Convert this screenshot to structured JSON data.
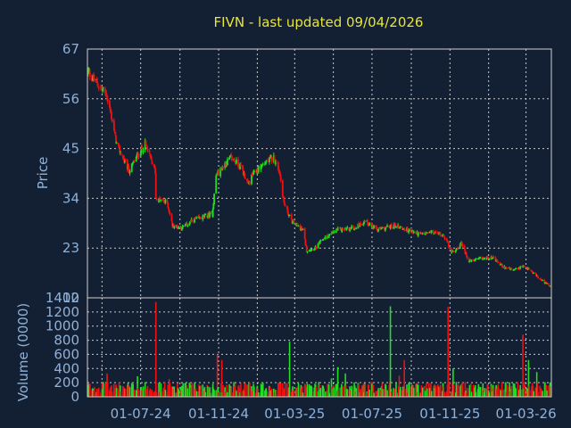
{
  "chart_data": {
    "type": "candlestick",
    "title": "FIVN - last updated 09/04/2026",
    "price_panel": {
      "ylabel": "Price",
      "ylim": [
        12,
        67
      ],
      "yticks": [
        67,
        56,
        45,
        34,
        23,
        12
      ]
    },
    "volume_panel": {
      "ylabel": "Volume (0000)",
      "ylim": [
        0,
        1400
      ],
      "yticks": [
        1400,
        1200,
        1000,
        800,
        600,
        400,
        200,
        0
      ]
    },
    "x_tick_labels": [
      "01-07-24",
      "01-11-24",
      "01-03-25",
      "01-07-25",
      "01-11-25",
      "01-03-26"
    ],
    "colors": {
      "up": "#22dd22",
      "down": "#ee1111",
      "grid": "#c8c8c8",
      "frame": "#cfcfcf",
      "background": "#132033",
      "text": "#8fb1d8",
      "title": "#e8e43a"
    },
    "price_anchors": [
      [
        "2024-04-09",
        62
      ],
      [
        "2024-04-25",
        59
      ],
      [
        "2024-05-08",
        57
      ],
      [
        "2024-05-16",
        52
      ],
      [
        "2024-05-24",
        46
      ],
      [
        "2024-06-06",
        42
      ],
      [
        "2024-06-13",
        40
      ],
      [
        "2024-06-24",
        43
      ],
      [
        "2024-07-08",
        46
      ],
      [
        "2024-07-24",
        40
      ],
      [
        "2024-07-25",
        34
      ],
      [
        "2024-08-12",
        33
      ],
      [
        "2024-08-20",
        28
      ],
      [
        "2024-09-05",
        27.5
      ],
      [
        "2024-09-20",
        29
      ],
      [
        "2024-10-10",
        30
      ],
      [
        "2024-10-22",
        30.5
      ],
      [
        "2024-10-28",
        39
      ],
      [
        "2024-11-08",
        41
      ],
      [
        "2024-11-20",
        43
      ],
      [
        "2024-12-06",
        41
      ],
      [
        "2024-12-18",
        37
      ],
      [
        "2024-12-24",
        39
      ],
      [
        "2025-01-06",
        41
      ],
      [
        "2025-01-14",
        42
      ],
      [
        "2025-01-27",
        43
      ],
      [
        "2025-02-05",
        40
      ],
      [
        "2025-02-12",
        33
      ],
      [
        "2025-02-24",
        29
      ],
      [
        "2025-03-14",
        27
      ],
      [
        "2025-03-20",
        22.5
      ],
      [
        "2025-04-03",
        23
      ],
      [
        "2025-04-15",
        25
      ],
      [
        "2025-05-08",
        27
      ],
      [
        "2025-06-04",
        27.5
      ],
      [
        "2025-06-20",
        29
      ],
      [
        "2025-07-09",
        27
      ],
      [
        "2025-08-07",
        28
      ],
      [
        "2025-08-25",
        27
      ],
      [
        "2025-09-16",
        26
      ],
      [
        "2025-10-02",
        26.5
      ],
      [
        "2025-10-22",
        26
      ],
      [
        "2025-11-04",
        22
      ],
      [
        "2025-11-20",
        24
      ],
      [
        "2025-12-01",
        20
      ],
      [
        "2025-12-16",
        20.5
      ],
      [
        "2026-01-06",
        21
      ],
      [
        "2026-01-22",
        19
      ],
      [
        "2026-02-10",
        18
      ],
      [
        "2026-02-25",
        19
      ],
      [
        "2026-03-10",
        18
      ],
      [
        "2026-03-24",
        16
      ],
      [
        "2026-04-09",
        14.5
      ]
    ],
    "volume_typical": 120,
    "volume_spikes": [
      [
        "2024-05-09",
        330
      ],
      [
        "2024-06-26",
        290
      ],
      [
        "2024-07-25",
        1340
      ],
      [
        "2024-08-15",
        250
      ],
      [
        "2024-10-30",
        600
      ],
      [
        "2024-11-06",
        520
      ],
      [
        "2025-02-21",
        780
      ],
      [
        "2025-04-28",
        260
      ],
      [
        "2025-05-08",
        420
      ],
      [
        "2025-05-20",
        330
      ],
      [
        "2025-07-30",
        1280
      ],
      [
        "2025-08-13",
        300
      ],
      [
        "2025-08-21",
        520
      ],
      [
        "2025-10-29",
        1270
      ],
      [
        "2025-11-06",
        400
      ],
      [
        "2026-02-24",
        880
      ],
      [
        "2026-03-05",
        520
      ],
      [
        "2026-03-18",
        350
      ]
    ]
  }
}
